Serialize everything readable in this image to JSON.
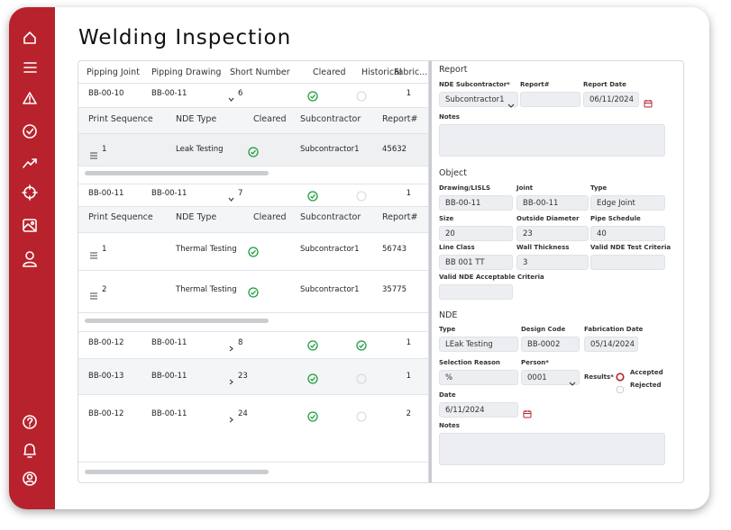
{
  "title": "Welding Inspection",
  "table": {
    "columns": [
      "Pipping Joint",
      "Pipping Drawing",
      "Short Number",
      "Cleared",
      "Historical",
      "Fabric..."
    ],
    "sub_columns": [
      "Print Sequence",
      "NDE Type",
      "Cleared",
      "Subcontractor",
      "Report#"
    ],
    "rows": [
      {
        "joint": "BB-00-10",
        "drawing": "BB-00-11",
        "short_number": 6,
        "cleared": true,
        "historical": false,
        "fabrication": 1,
        "expanded": true,
        "details": [
          {
            "sequence": 1,
            "nde_type": "Leak Testing",
            "cleared": true,
            "subcontractor": "Subcontractor1",
            "report": 45632
          }
        ]
      },
      {
        "joint": "BB-00-11",
        "drawing": "BB-00-11",
        "short_number": 7,
        "cleared": true,
        "historical": false,
        "fabrication": 1,
        "expanded": true,
        "details": [
          {
            "sequence": 1,
            "nde_type": "Thermal Testing",
            "cleared": true,
            "subcontractor": "Subcontractor1",
            "report": 56743
          },
          {
            "sequence": 2,
            "nde_type": "Thermal Testing",
            "cleared": true,
            "subcontractor": "Subcontractor1",
            "report": 35775
          }
        ]
      },
      {
        "joint": "BB-00-12",
        "drawing": "BB-00-11",
        "short_number": 8,
        "cleared": true,
        "historical": true,
        "fabrication": 1,
        "expanded": false
      },
      {
        "joint": "BB-00-13",
        "drawing": "BB-00-11",
        "short_number": 23,
        "cleared": true,
        "historical": false,
        "fabrication": 1,
        "expanded": false
      },
      {
        "joint": "BB-00-12",
        "drawing": "BB-00-11",
        "short_number": 24,
        "cleared": true,
        "historical": false,
        "fabrication": 2,
        "expanded": false
      }
    ]
  },
  "form": {
    "sections": [
      {
        "title": "Report",
        "fields": [
          {
            "label": "NDE Subcontractor*",
            "value": "Subcontractor1",
            "control": "select"
          },
          {
            "label": "Report#"
          },
          {
            "label": "Report Date",
            "value": "06/11/2024",
            "control": "date"
          },
          {
            "label": "Notes",
            "control": "textarea"
          }
        ]
      },
      {
        "title": "Object",
        "fields": [
          {
            "label": "Drawing/LISLS",
            "value": "BB-00-11"
          },
          {
            "label": "Joint",
            "value": "BB-00-11"
          },
          {
            "label": "Type",
            "value": "Edge Joint"
          },
          {
            "label": "Size",
            "value": "20"
          },
          {
            "label": "Outside Diameter",
            "value": "23"
          },
          {
            "label": "Pipe Schedule",
            "value": "40"
          },
          {
            "label": "Line Class",
            "value": "BB 001 TT"
          },
          {
            "label": "Wall Thickness",
            "value": "3"
          },
          {
            "label": "Valid NDE Test Criteria"
          },
          {
            "label": "Valid NDE Acceptable Criteria"
          }
        ]
      },
      {
        "title": "NDE",
        "fields": [
          {
            "label": "Type",
            "value": "LEak Testing"
          },
          {
            "label": "Design Code",
            "value": "BB-0002"
          },
          {
            "label": "Fabrication Date",
            "value": "05/14/2024"
          },
          {
            "label": "Selection Reason",
            "value": "%"
          },
          {
            "label": "Person*",
            "value": "0001",
            "control": "select"
          },
          {
            "label": "Results*",
            "control": "radio",
            "options": [
              "Accepted",
              "Rejected"
            ],
            "selected": 0
          },
          {
            "label": "Date",
            "value": "6/11/2024",
            "control": "date"
          },
          {
            "label": "Notes",
            "control": "textarea"
          }
        ]
      }
    ]
  }
}
